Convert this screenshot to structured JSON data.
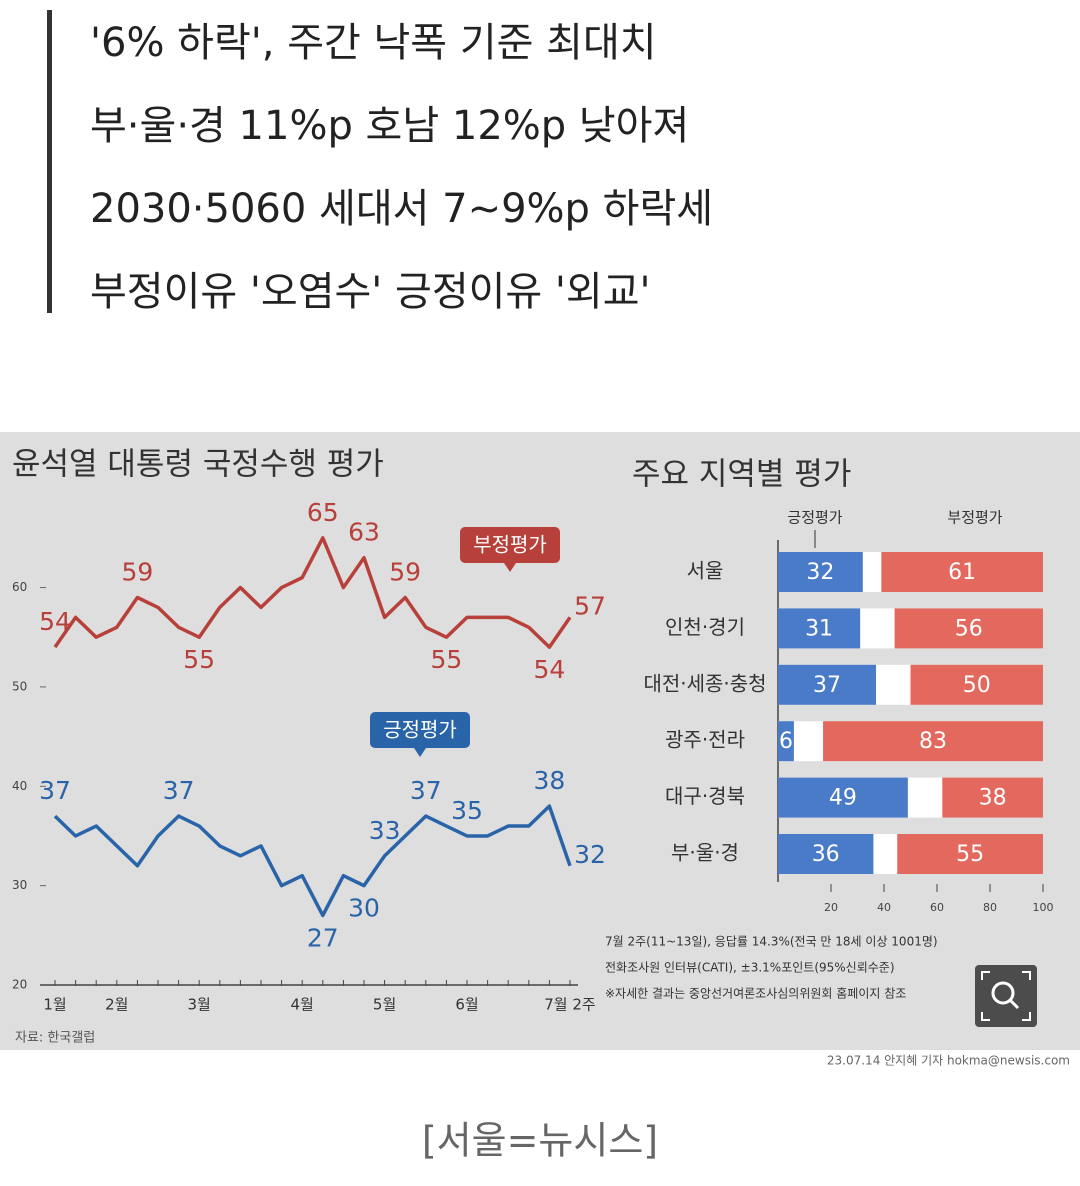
{
  "headline_lines": [
    "'6% 하락', 주간 낙폭 기준 최대치",
    "부·울·경 11%p 호남 12%p 낮아져",
    "2030·5060 세대서 7~9%p 하락세",
    "부정이유 '오염수' 긍정이유 '외교'"
  ],
  "chart_data": [
    {
      "type": "line",
      "title": "윤석열 대통령 국정수행 평가",
      "source": "자료: 한국갤럽",
      "categories": [
        "1월",
        null,
        null,
        "2월",
        null,
        null,
        null,
        "3월",
        null,
        null,
        null,
        null,
        "4월",
        null,
        null,
        null,
        "5월",
        null,
        null,
        null,
        "6월",
        null,
        null,
        null,
        null,
        "7월 2주"
      ],
      "series": [
        {
          "name": "부정평가",
          "color": "#b8403a",
          "values": [
            54,
            57,
            55,
            56,
            59,
            58,
            56,
            55,
            58,
            60,
            58,
            60,
            61,
            65,
            60,
            63,
            57,
            59,
            56,
            55,
            57,
            57,
            57,
            56,
            54,
            57
          ],
          "value_labels": [
            "54",
            null,
            null,
            null,
            "59",
            null,
            null,
            "55",
            null,
            null,
            null,
            null,
            null,
            "65",
            null,
            "63",
            null,
            "59",
            null,
            "55",
            null,
            null,
            null,
            null,
            "54",
            "57"
          ]
        },
        {
          "name": "긍정평가",
          "color": "#2a64a8",
          "values": [
            37,
            35,
            36,
            34,
            32,
            35,
            37,
            36,
            34,
            33,
            34,
            30,
            31,
            27,
            31,
            30,
            33,
            35,
            37,
            36,
            35,
            35,
            36,
            36,
            38,
            32
          ],
          "value_labels": [
            "37",
            null,
            null,
            null,
            null,
            null,
            "37",
            null,
            null,
            null,
            null,
            null,
            null,
            "27",
            null,
            "30",
            "33",
            null,
            "37",
            null,
            "35",
            null,
            null,
            null,
            "38",
            "32"
          ]
        }
      ],
      "ylim": [
        20,
        67
      ],
      "yticks": [
        20,
        30,
        40,
        50,
        60
      ]
    },
    {
      "type": "bar",
      "orientation": "horizontal",
      "title": "주요 지역별 평가",
      "categories": [
        "서울",
        "인천·경기",
        "대전·세종·충청",
        "광주·전라",
        "대구·경북",
        "부·울·경"
      ],
      "series": [
        {
          "name": "긍정평가",
          "color": "#4a7bc8",
          "values": [
            32,
            31,
            37,
            6,
            49,
            36
          ]
        },
        {
          "name": "부정평가",
          "color": "#e3695e",
          "values": [
            61,
            56,
            50,
            83,
            38,
            55
          ]
        }
      ],
      "xlim": [
        0,
        100
      ],
      "xticks": [
        20,
        40,
        60,
        80,
        100
      ]
    }
  ],
  "notes": [
    "7월 2주(11~13일), 응답률 14.3%(전국 만 18세 이상 1001명)",
    "전화조사원 인터뷰(CATI), ±3.1%포인트(95%신뢰수준)",
    "※자세한 결과는 중앙선거여론조사심의위원회 홈페이지 참조"
  ],
  "credit": "23.07.14 안지혜 기자 hokma@newsis.com",
  "caption": "[서울=뉴시스]"
}
